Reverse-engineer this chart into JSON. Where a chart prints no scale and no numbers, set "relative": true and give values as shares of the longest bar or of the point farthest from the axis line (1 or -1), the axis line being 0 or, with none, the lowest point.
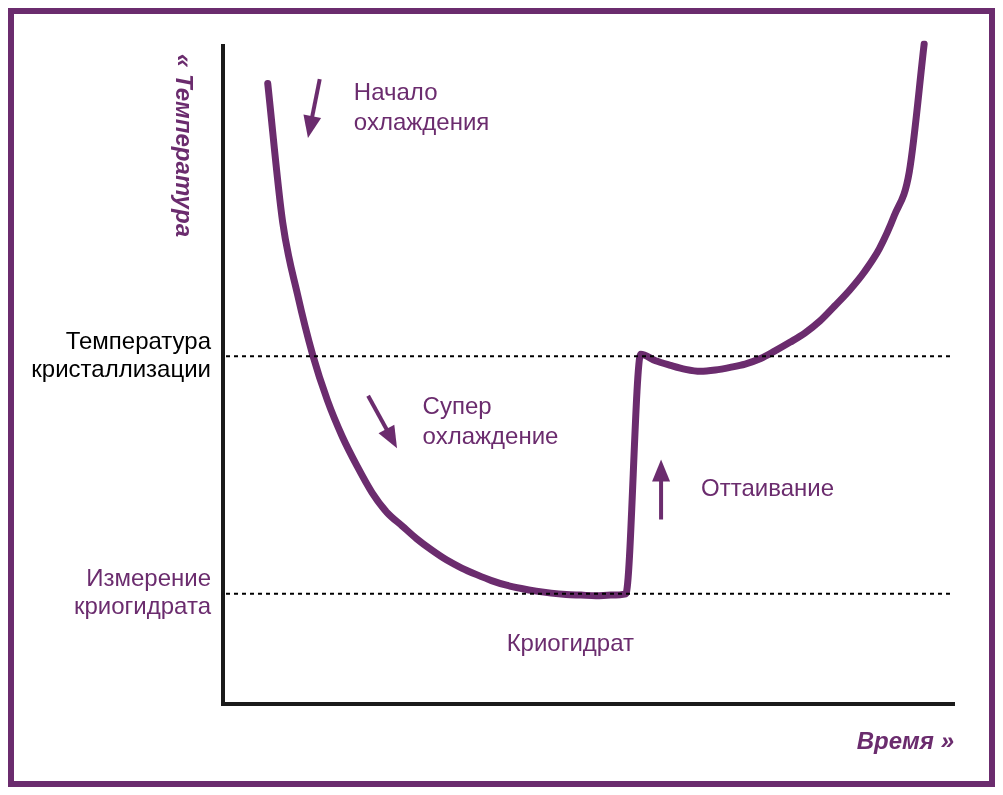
{
  "chart_data": {
    "type": "line",
    "relative": true,
    "xlabel": "Время »",
    "ylabel": "« Температура",
    "legend": false,
    "marker": "none",
    "line_style": "solid",
    "categories": [
      null,
      null,
      null,
      null,
      null,
      null,
      null,
      null,
      null,
      null,
      null,
      null,
      null,
      null,
      null,
      null,
      null,
      null,
      null,
      null,
      null,
      null,
      null,
      null,
      null,
      null,
      null,
      null,
      null,
      null,
      null,
      null,
      null,
      null,
      null,
      null,
      null,
      null,
      null,
      null,
      null,
      null,
      null,
      null,
      null,
      null,
      null,
      null,
      null,
      null
    ],
    "series": [
      {
        "color": "#6b2c6e",
        "values": [
          null,
          null,
          null,
          0.94,
          0.73,
          0.62,
          0.53,
          0.46,
          0.405,
          0.36,
          0.32,
          0.29,
          0.27,
          0.25,
          0.233,
          0.218,
          0.206,
          0.196,
          0.187,
          0.18,
          0.175,
          0.171,
          0.168,
          0.166,
          0.165,
          0.164,
          0.165,
          0.167,
          0.53,
          0.52,
          0.513,
          0.507,
          0.504,
          0.506,
          0.51,
          0.515,
          0.523,
          0.535,
          0.548,
          0.562,
          0.58,
          0.603,
          0.627,
          0.655,
          0.69,
          0.74,
          0.806,
          1.0,
          null,
          null
        ]
      }
    ],
    "ref_lines": [
      {
        "axis": "y",
        "value": 0.527,
        "label": "Температура кристаллизации",
        "color": "#000000",
        "line_style": "dotted"
      },
      {
        "axis": "y",
        "value": 0.167,
        "label": "Измерение криогидрата",
        "color": "#000000",
        "line_style": "dotted"
      }
    ],
    "annotations": [
      "Начало охлаждения",
      "Супер охлаждение",
      "Оттаивание",
      "Криогидрат"
    ]
  }
}
